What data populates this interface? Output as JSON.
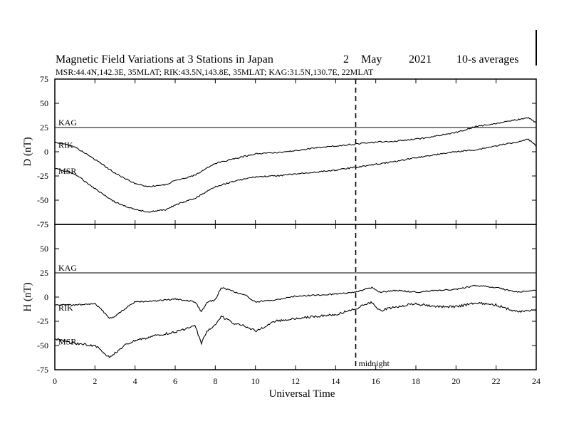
{
  "chart_data": {
    "type": "line",
    "title": "Magnetic Field Variations at 3 Stations in Japan",
    "date": {
      "day": "2",
      "month": "May",
      "year": "2021"
    },
    "averaging": "10-s averages",
    "stations_line": "MSR:44.4N,142.3E, 35MLAT;  RIK:43.5N,143.8E, 35MLAT;  KAG:31.5N,130.7E, 22MLAT",
    "xlabel": "Universal Time",
    "xlim": [
      0,
      24
    ],
    "xticks": [
      "0",
      "2",
      "4",
      "6",
      "8",
      "10",
      "12",
      "14",
      "16",
      "18",
      "20",
      "22",
      "24"
    ],
    "marker": {
      "x": 15,
      "label": "midnight"
    },
    "panels": [
      {
        "ylabel": "D (nT)",
        "ylim": [
          -75,
          75
        ],
        "yticks": [
          "75",
          "50",
          "25",
          "0",
          "-25",
          "-50",
          "-75"
        ],
        "series": [
          {
            "name": "KAG",
            "x": [
              0,
              24
            ],
            "values": [
              25,
              25
            ]
          },
          {
            "name": "RIK",
            "x": [
              0,
              1,
              2,
              3,
              4,
              4.7,
              5.5,
              6,
              7,
              8,
              9,
              10,
              11,
              12,
              13,
              14,
              15,
              16,
              17,
              18,
              19,
              20,
              21,
              22,
              23,
              23.6,
              24
            ],
            "values": [
              10,
              5,
              -8,
              -22,
              -33,
              -36,
              -34,
              -30,
              -24,
              -12,
              -7,
              -2,
              -1,
              1,
              4,
              6,
              8,
              10,
              11,
              13,
              16,
              20,
              26,
              29,
              33,
              35,
              30
            ]
          },
          {
            "name": "MSR",
            "x": [
              0,
              1,
              2,
              3,
              4,
              4.7,
              5.5,
              6,
              7,
              8,
              9,
              10,
              11,
              12,
              13,
              14,
              15,
              16,
              17,
              18,
              19,
              20,
              21,
              22,
              23,
              23.6,
              24
            ],
            "values": [
              -17,
              -23,
              -38,
              -52,
              -60,
              -62,
              -60,
              -55,
              -48,
              -36,
              -30,
              -26,
              -25,
              -23,
              -21,
              -19,
              -16,
              -13,
              -10,
              -6,
              -3,
              0,
              2,
              6,
              10,
              13,
              6
            ]
          }
        ]
      },
      {
        "ylabel": "H (nT)",
        "ylim": [
          -75,
          75
        ],
        "yticks": [
          "75",
          "50",
          "25",
          "0",
          "-25",
          "-50",
          "-75"
        ],
        "series": [
          {
            "name": "KAG",
            "x": [
              0,
              24
            ],
            "values": [
              25,
              25
            ]
          },
          {
            "name": "RIK",
            "x": [
              0,
              1,
              2,
              2.3,
              2.7,
              3,
              3.5,
              4,
              5,
              6,
              7,
              7.3,
              7.6,
              8,
              8.3,
              9,
              9.5,
              10,
              11,
              12,
              13,
              14,
              15,
              15.8,
              16.2,
              17,
              18,
              19,
              20,
              21,
              22,
              23,
              24
            ],
            "values": [
              -8,
              -8,
              -7,
              -12,
              -22,
              -20,
              -12,
              -5,
              -4,
              -2,
              -5,
              -15,
              -5,
              -3,
              10,
              5,
              2,
              -5,
              -3,
              1,
              2,
              3,
              5,
              10,
              5,
              7,
              5,
              7,
              8,
              12,
              10,
              5,
              7
            ]
          },
          {
            "name": "MSR",
            "x": [
              0,
              1,
              2,
              2.3,
              2.7,
              3,
              3.5,
              4,
              5,
              6,
              7,
              7.3,
              7.6,
              8,
              8.3,
              9,
              9.5,
              10,
              11,
              12,
              13,
              14,
              15,
              15.8,
              16.2,
              17,
              18,
              19,
              20,
              21,
              22,
              23,
              24
            ],
            "values": [
              -43,
              -48,
              -50,
              -55,
              -62,
              -58,
              -50,
              -45,
              -40,
              -36,
              -30,
              -48,
              -35,
              -28,
              -20,
              -28,
              -30,
              -35,
              -25,
              -22,
              -20,
              -18,
              -12,
              -5,
              -14,
              -10,
              -7,
              -10,
              -10,
              -6,
              -8,
              -15,
              -13
            ]
          }
        ]
      }
    ]
  }
}
